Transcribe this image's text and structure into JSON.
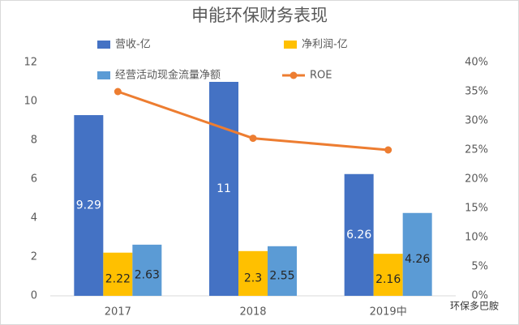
{
  "chart_data": {
    "type": "bar",
    "title": "申能环保财务表现",
    "categories": [
      "2017",
      "2018",
      "2019中"
    ],
    "series": [
      {
        "name": "营收-亿",
        "color": "#4472c4",
        "values": [
          9.29,
          11,
          6.26
        ]
      },
      {
        "name": "净利润-亿",
        "color": "#ffc000",
        "values": [
          2.22,
          2.3,
          2.16
        ]
      },
      {
        "name": "经营活动现金流量净额",
        "color": "#5b9bd5",
        "values": [
          2.63,
          2.55,
          4.26
        ]
      },
      {
        "name": "ROE",
        "type": "line",
        "axis": "y2",
        "color": "#ed7d31",
        "values": [
          35,
          27,
          25
        ]
      }
    ],
    "ylim": [
      0,
      12
    ],
    "yticks": [
      0,
      2,
      4,
      6,
      8,
      10,
      12
    ],
    "y2lim": [
      0,
      40
    ],
    "y2ticks": [
      {
        "value": 0,
        "label": "0%"
      },
      {
        "value": 5,
        "label": "5%"
      },
      {
        "value": 10,
        "label": "10%"
      },
      {
        "value": 15,
        "label": "15%"
      },
      {
        "value": 20,
        "label": "20%"
      },
      {
        "value": 25,
        "label": "25%"
      },
      {
        "value": 30,
        "label": "30%"
      },
      {
        "value": 35,
        "label": "35%"
      },
      {
        "value": 40,
        "label": "40%"
      }
    ],
    "watermark": "环保多巴胺"
  }
}
